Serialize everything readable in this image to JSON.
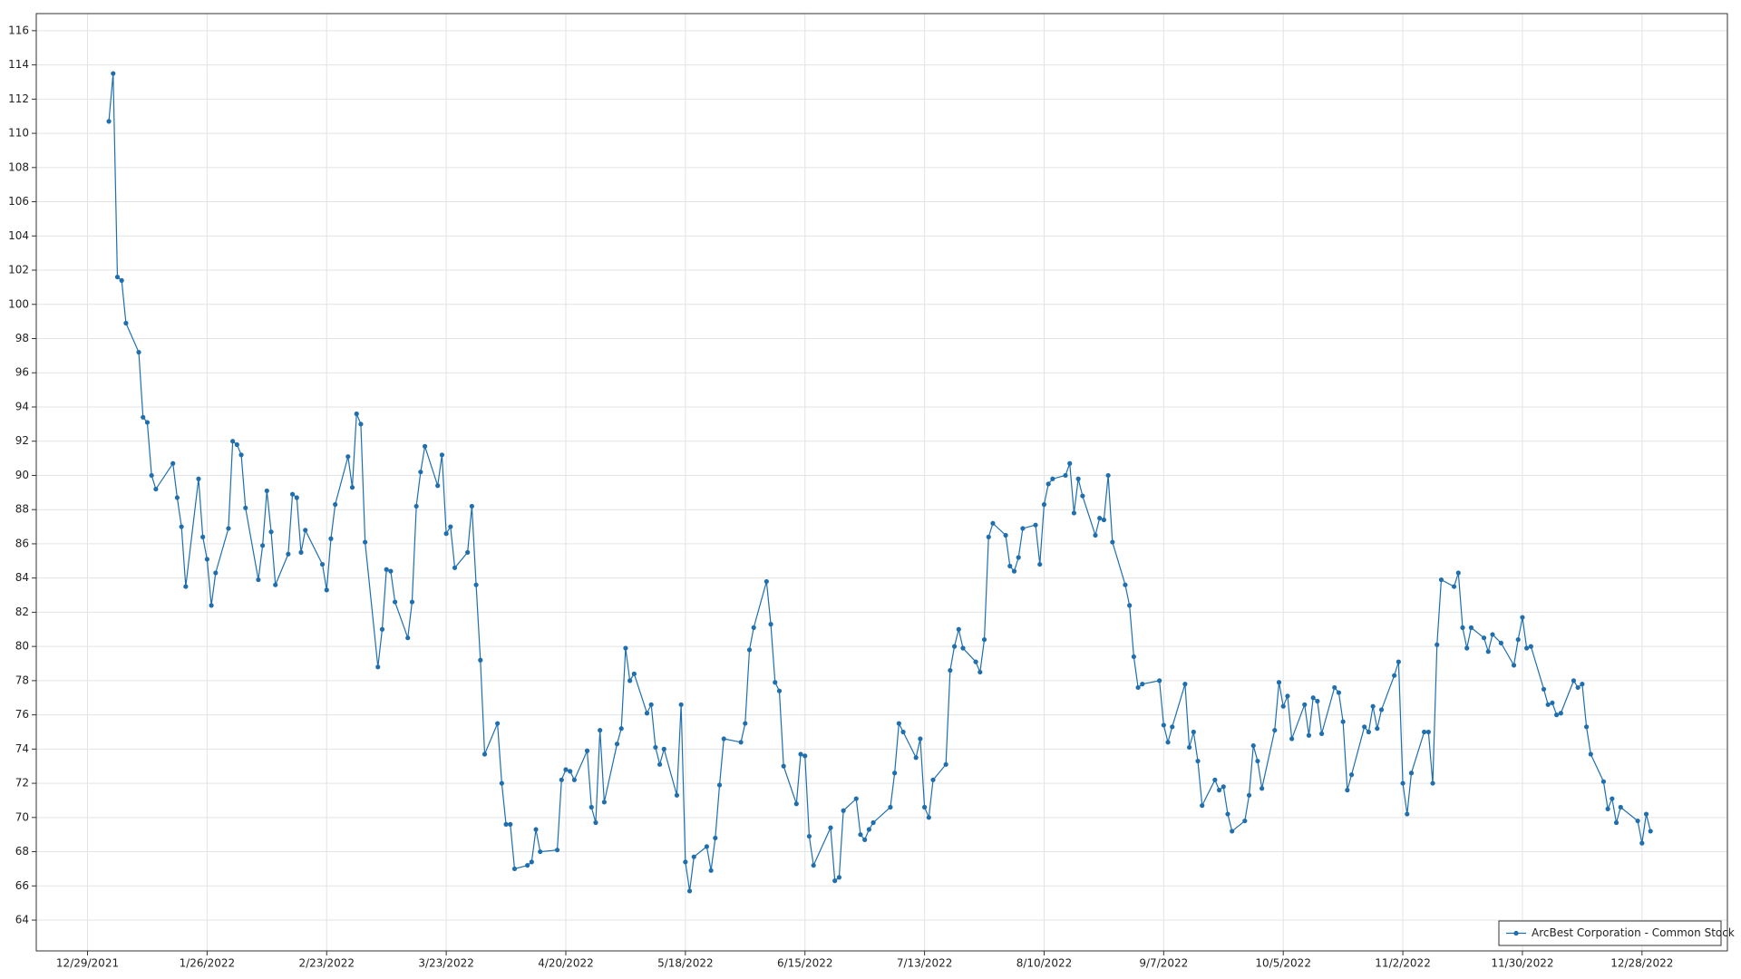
{
  "chart_data": {
    "type": "line",
    "series": [
      {
        "name": "ArcBest Corporation - Common Stock",
        "color": "#1f6fae",
        "values": [
          110.7,
          113.5,
          101.6,
          101.4,
          98.9,
          97.2,
          93.4,
          93.1,
          90.0,
          89.2,
          90.7,
          88.7,
          87.0,
          83.5,
          89.8,
          86.4,
          85.1,
          82.4,
          84.3,
          86.9,
          92.0,
          91.8,
          91.2,
          88.1,
          83.9,
          85.9,
          89.1,
          86.7,
          83.6,
          85.4,
          88.9,
          88.7,
          85.5,
          86.8,
          84.8,
          83.3,
          86.3,
          88.3,
          91.1,
          89.3,
          93.6,
          93.0,
          86.1,
          78.8,
          81.0,
          84.5,
          84.4,
          82.6,
          80.5,
          82.6,
          88.2,
          90.2,
          91.7,
          89.4,
          91.2,
          86.6,
          87.0,
          84.6,
          85.5,
          88.2,
          83.6,
          79.2,
          73.7,
          75.5,
          72.0,
          69.6,
          69.6,
          67.0,
          67.2,
          67.4,
          69.3,
          68.0,
          68.1,
          72.2,
          72.8,
          72.7,
          72.2,
          73.9,
          70.6,
          69.7,
          75.1,
          70.9,
          74.3,
          75.2,
          79.9,
          78.0,
          78.4,
          76.1,
          76.6,
          74.1,
          73.1,
          74.0,
          71.3,
          76.6,
          67.4,
          65.7,
          67.7,
          68.3,
          66.9,
          68.8,
          71.9,
          74.6,
          74.4,
          75.5,
          79.8,
          81.1,
          83.8,
          81.3,
          77.9,
          77.4,
          73.0,
          70.8,
          73.7,
          73.6,
          68.9,
          67.2,
          69.4,
          66.3,
          66.5,
          70.4,
          71.1,
          69.0,
          68.7,
          69.3,
          69.7,
          70.6,
          72.6,
          75.5,
          75.0,
          73.5,
          74.6,
          70.6,
          70.0,
          72.2,
          73.1,
          78.6,
          80.0,
          81.0,
          79.9,
          79.1,
          78.5,
          80.4,
          86.4,
          87.2,
          86.5,
          84.7,
          84.4,
          85.2,
          86.9,
          87.1,
          84.8,
          88.3,
          89.5,
          89.8,
          90.0,
          90.7,
          87.8,
          89.8,
          88.8,
          86.5,
          87.5,
          87.4,
          90.0,
          86.1,
          83.6,
          82.4,
          79.4,
          77.6,
          77.8,
          78.0,
          75.4,
          74.4,
          75.3,
          77.8,
          74.1,
          75.0,
          73.3,
          70.7,
          72.2,
          71.6,
          71.8,
          70.2,
          69.2,
          69.8,
          71.3,
          74.2,
          73.3,
          71.7,
          75.1,
          77.9,
          76.5,
          77.1,
          74.6,
          76.6,
          74.8,
          77.0,
          76.8,
          74.9,
          77.6,
          77.3,
          75.6,
          71.6,
          72.5,
          75.3,
          75.0,
          76.5,
          75.2,
          76.3,
          78.3,
          79.1,
          72.0,
          70.2,
          72.6,
          75.0,
          75.0,
          72.0,
          80.1,
          83.9,
          83.5,
          84.3,
          81.1,
          79.9,
          81.1,
          80.5,
          79.7,
          80.7,
          80.2,
          78.9,
          80.4,
          81.7,
          79.9,
          80.0,
          77.5,
          76.6,
          76.7,
          76.0,
          76.1,
          78.0,
          77.6,
          77.8,
          75.3,
          73.7,
          72.1,
          70.5,
          71.1,
          69.7,
          70.6,
          69.8,
          68.5,
          70.2,
          69.2
        ]
      }
    ],
    "x": [
      "2022-01-03",
      "2022-01-04",
      "2022-01-05",
      "2022-01-06",
      "2022-01-07",
      "2022-01-10",
      "2022-01-11",
      "2022-01-12",
      "2022-01-13",
      "2022-01-14",
      "2022-01-18",
      "2022-01-19",
      "2022-01-20",
      "2022-01-21",
      "2022-01-24",
      "2022-01-25",
      "2022-01-26",
      "2022-01-27",
      "2022-01-28",
      "2022-01-31",
      "2022-02-01",
      "2022-02-02",
      "2022-02-03",
      "2022-02-04",
      "2022-02-07",
      "2022-02-08",
      "2022-02-09",
      "2022-02-10",
      "2022-02-11",
      "2022-02-14",
      "2022-02-15",
      "2022-02-16",
      "2022-02-17",
      "2022-02-18",
      "2022-02-22",
      "2022-02-23",
      "2022-02-24",
      "2022-02-25",
      "2022-02-28",
      "2022-03-01",
      "2022-03-02",
      "2022-03-03",
      "2022-03-04",
      "2022-03-07",
      "2022-03-08",
      "2022-03-09",
      "2022-03-10",
      "2022-03-11",
      "2022-03-14",
      "2022-03-15",
      "2022-03-16",
      "2022-03-17",
      "2022-03-18",
      "2022-03-21",
      "2022-03-22",
      "2022-03-23",
      "2022-03-24",
      "2022-03-25",
      "2022-03-28",
      "2022-03-29",
      "2022-03-30",
      "2022-03-31",
      "2022-04-01",
      "2022-04-04",
      "2022-04-05",
      "2022-04-06",
      "2022-04-07",
      "2022-04-08",
      "2022-04-11",
      "2022-04-12",
      "2022-04-13",
      "2022-04-14",
      "2022-04-18",
      "2022-04-19",
      "2022-04-20",
      "2022-04-21",
      "2022-04-22",
      "2022-04-25",
      "2022-04-26",
      "2022-04-27",
      "2022-04-28",
      "2022-04-29",
      "2022-05-02",
      "2022-05-03",
      "2022-05-04",
      "2022-05-05",
      "2022-05-06",
      "2022-05-09",
      "2022-05-10",
      "2022-05-11",
      "2022-05-12",
      "2022-05-13",
      "2022-05-16",
      "2022-05-17",
      "2022-05-18",
      "2022-05-19",
      "2022-05-20",
      "2022-05-23",
      "2022-05-24",
      "2022-05-25",
      "2022-05-26",
      "2022-05-27",
      "2022-05-31",
      "2022-06-01",
      "2022-06-02",
      "2022-06-03",
      "2022-06-06",
      "2022-06-07",
      "2022-06-08",
      "2022-06-09",
      "2022-06-10",
      "2022-06-13",
      "2022-06-14",
      "2022-06-15",
      "2022-06-16",
      "2022-06-17",
      "2022-06-21",
      "2022-06-22",
      "2022-06-23",
      "2022-06-24",
      "2022-06-27",
      "2022-06-28",
      "2022-06-29",
      "2022-06-30",
      "2022-07-01",
      "2022-07-05",
      "2022-07-06",
      "2022-07-07",
      "2022-07-08",
      "2022-07-11",
      "2022-07-12",
      "2022-07-13",
      "2022-07-14",
      "2022-07-15",
      "2022-07-18",
      "2022-07-19",
      "2022-07-20",
      "2022-07-21",
      "2022-07-22",
      "2022-07-25",
      "2022-07-26",
      "2022-07-27",
      "2022-07-28",
      "2022-07-29",
      "2022-08-01",
      "2022-08-02",
      "2022-08-03",
      "2022-08-04",
      "2022-08-05",
      "2022-08-08",
      "2022-08-09",
      "2022-08-10",
      "2022-08-11",
      "2022-08-12",
      "2022-08-15",
      "2022-08-16",
      "2022-08-17",
      "2022-08-18",
      "2022-08-19",
      "2022-08-22",
      "2022-08-23",
      "2022-08-24",
      "2022-08-25",
      "2022-08-26",
      "2022-08-29",
      "2022-08-30",
      "2022-08-31",
      "2022-09-01",
      "2022-09-02",
      "2022-09-06",
      "2022-09-07",
      "2022-09-08",
      "2022-09-09",
      "2022-09-12",
      "2022-09-13",
      "2022-09-14",
      "2022-09-15",
      "2022-09-16",
      "2022-09-19",
      "2022-09-20",
      "2022-09-21",
      "2022-09-22",
      "2022-09-23",
      "2022-09-26",
      "2022-09-27",
      "2022-09-28",
      "2022-09-29",
      "2022-09-30",
      "2022-10-03",
      "2022-10-04",
      "2022-10-05",
      "2022-10-06",
      "2022-10-07",
      "2022-10-10",
      "2022-10-11",
      "2022-10-12",
      "2022-10-13",
      "2022-10-14",
      "2022-10-17",
      "2022-10-18",
      "2022-10-19",
      "2022-10-20",
      "2022-10-21",
      "2022-10-24",
      "2022-10-25",
      "2022-10-26",
      "2022-10-27",
      "2022-10-28",
      "2022-10-31",
      "2022-11-01",
      "2022-11-02",
      "2022-11-03",
      "2022-11-04",
      "2022-11-07",
      "2022-11-08",
      "2022-11-09",
      "2022-11-10",
      "2022-11-11",
      "2022-11-14",
      "2022-11-15",
      "2022-11-16",
      "2022-11-17",
      "2022-11-18",
      "2022-11-21",
      "2022-11-22",
      "2022-11-23",
      "2022-11-25",
      "2022-11-28",
      "2022-11-29",
      "2022-11-30",
      "2022-12-01",
      "2022-12-02",
      "2022-12-05",
      "2022-12-06",
      "2022-12-07",
      "2022-12-08",
      "2022-12-09",
      "2022-12-12",
      "2022-12-13",
      "2022-12-14",
      "2022-12-15",
      "2022-12-16",
      "2022-12-19",
      "2022-12-20",
      "2022-12-21",
      "2022-12-22",
      "2022-12-23",
      "2022-12-27",
      "2022-12-28",
      "2022-12-29",
      "2022-12-30"
    ],
    "xlim": [
      "2021-12-17",
      "2023-01-17"
    ],
    "xticks": [
      {
        "value": "2021-12-29",
        "label": "12/29/2021"
      },
      {
        "value": "2022-01-26",
        "label": "1/26/2022"
      },
      {
        "value": "2022-02-23",
        "label": "2/23/2022"
      },
      {
        "value": "2022-03-23",
        "label": "3/23/2022"
      },
      {
        "value": "2022-04-20",
        "label": "4/20/2022"
      },
      {
        "value": "2022-05-18",
        "label": "5/18/2022"
      },
      {
        "value": "2022-06-15",
        "label": "6/15/2022"
      },
      {
        "value": "2022-07-13",
        "label": "7/13/2022"
      },
      {
        "value": "2022-08-10",
        "label": "8/10/2022"
      },
      {
        "value": "2022-09-07",
        "label": "9/7/2022"
      },
      {
        "value": "2022-10-05",
        "label": "10/5/2022"
      },
      {
        "value": "2022-11-02",
        "label": "11/2/2022"
      },
      {
        "value": "2022-11-30",
        "label": "11/30/2022"
      },
      {
        "value": "2022-12-28",
        "label": "12/28/2022"
      }
    ],
    "ylim": [
      62.2,
      117.0
    ],
    "yticks": [
      64,
      66,
      68,
      70,
      72,
      74,
      76,
      78,
      80,
      82,
      84,
      86,
      88,
      90,
      92,
      94,
      96,
      98,
      100,
      102,
      104,
      106,
      108,
      110,
      112,
      114,
      116
    ],
    "grid": true,
    "legend": "lower right"
  }
}
